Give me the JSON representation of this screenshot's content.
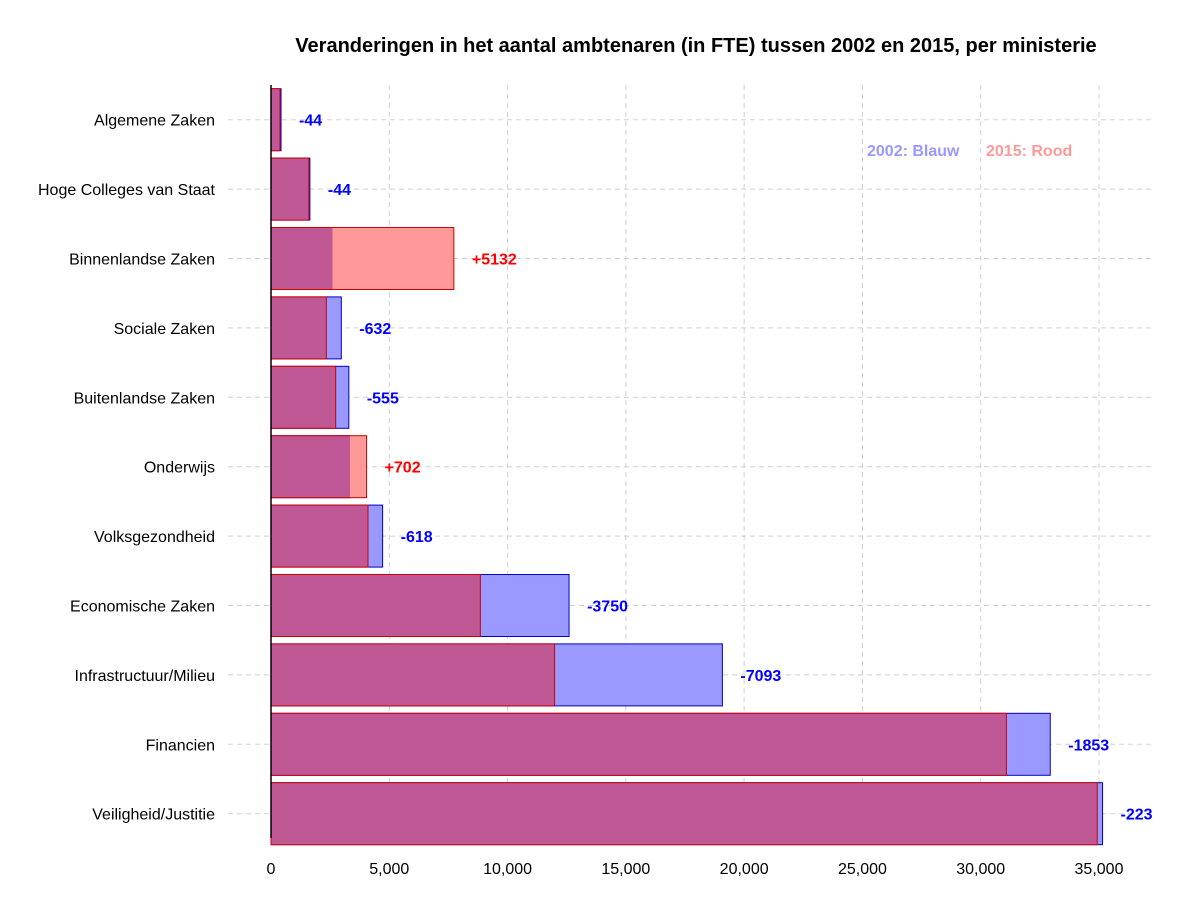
{
  "chart_data": {
    "type": "bar",
    "orientation": "horizontal",
    "title": "Veranderingen in het aantal ambtenaren (in FTE) tussen 2002 en 2015, per ministerie",
    "xlabel": "",
    "ylabel": "",
    "xlim": [
      0,
      35000
    ],
    "x_ticks": [
      0,
      5000,
      10000,
      15000,
      20000,
      25000,
      30000,
      35000
    ],
    "x_tick_labels": [
      "0",
      "5,000",
      "10,000",
      "15,000",
      "20,000",
      "25,000",
      "30,000",
      "35,000"
    ],
    "grid": true,
    "categories": [
      "Algemene Zaken",
      "Hoge Colleges van Staat",
      "Binnenlandse Zaken",
      "Sociale Zaken",
      "Buitenlandse Zaken",
      "Onderwijs",
      "Volksgezondheid",
      "Economische Zaken",
      "Infrastructuur/Milieu",
      "Financien",
      "Veiligheid/Justitie"
    ],
    "series": [
      {
        "year": "2002",
        "color": "#9999ff",
        "stroke": "#0000cc",
        "values": [
          424,
          1644,
          2598,
          2972,
          3290,
          3338,
          4718,
          12600,
          19080,
          32940,
          35150
        ]
      },
      {
        "year": "2015",
        "color": "#ff9999",
        "stroke": "#cc0000",
        "values": [
          380,
          1600,
          7730,
          2340,
          2735,
          4040,
          4100,
          8850,
          11987,
          31087,
          34927
        ]
      }
    ],
    "overlap_color": "#c05896",
    "differences": [
      "-44",
      "-44",
      "+5132",
      "-632",
      "-555",
      "+702",
      "-618",
      "-3750",
      "-7093",
      "-1853",
      "-223"
    ],
    "difference_colors": [
      "#0000ff",
      "#0000ff",
      "#ff0000",
      "#0000ff",
      "#0000ff",
      "#ff0000",
      "#0000ff",
      "#0000ff",
      "#0000ff",
      "#0000ff",
      "#0000ff"
    ],
    "legend": {
      "position": "top-right",
      "items": [
        {
          "text": "2002: Blauw",
          "color": "#9999ff"
        },
        {
          "text": "2015: Rood",
          "color": "#ff9999"
        }
      ]
    }
  }
}
